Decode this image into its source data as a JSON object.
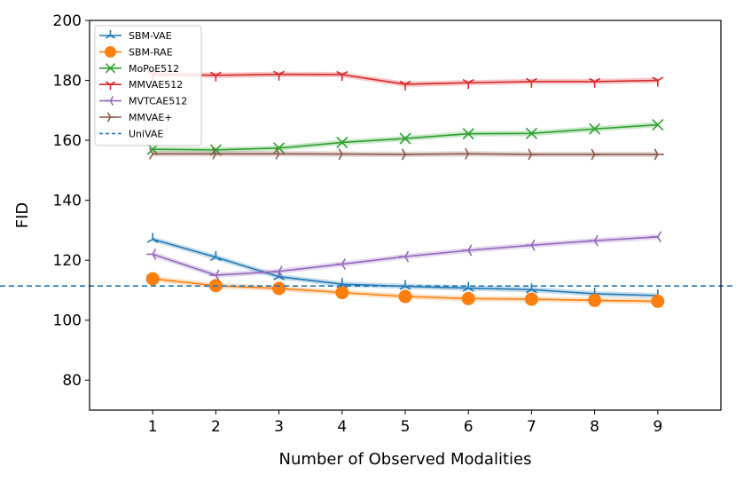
{
  "chart_data": {
    "type": "line",
    "xlabel": "Number of Observed Modalities",
    "ylabel": "FID",
    "x": [
      1,
      2,
      3,
      4,
      5,
      6,
      7,
      8,
      9
    ],
    "xticks": [
      "1",
      "2",
      "3",
      "4",
      "5",
      "6",
      "7",
      "8",
      "9"
    ],
    "yticks": [
      "80",
      "100",
      "120",
      "140",
      "160",
      "180",
      "200"
    ],
    "xlim": [
      0,
      10
    ],
    "ylim": [
      70,
      200
    ],
    "grid": false,
    "legend_position": "top-left",
    "series": [
      {
        "name": "SBM-VAE",
        "color": "#1f77b4",
        "marker": "tri_up",
        "values": [
          127,
          121,
          114.5,
          112,
          111.3,
          110.7,
          110.2,
          108.8,
          108.2
        ]
      },
      {
        "name": "SBM-RAE",
        "color": "#ff7f0e",
        "marker": "circle",
        "values": [
          113.8,
          111.5,
          110.6,
          109.2,
          107.9,
          107.2,
          107,
          106.6,
          106.3
        ]
      },
      {
        "name": "MoPoE512",
        "color": "#2ca02c",
        "marker": "x",
        "values": [
          157,
          156.8,
          157.4,
          159.3,
          160.6,
          162.2,
          162.3,
          163.8,
          165.2
        ]
      },
      {
        "name": "MMVAE512",
        "color": "#d62728",
        "marker": "tri_down",
        "values": [
          182,
          181.7,
          182,
          181.9,
          178.7,
          179.2,
          179.6,
          179.6,
          180
        ]
      },
      {
        "name": "MVTCAE512",
        "color": "#9467bd",
        "marker": "tri_left",
        "values": [
          122,
          115,
          116.3,
          118.7,
          121.2,
          123.3,
          125,
          126.5,
          127.8
        ]
      },
      {
        "name": "MMVAE+",
        "color": "#8c564b",
        "marker": "tri_right",
        "values": [
          155.5,
          155.5,
          155.5,
          155.4,
          155.3,
          155.5,
          155.3,
          155.3,
          155.3
        ]
      },
      {
        "name": "UniVAE",
        "color": "#1f77b4",
        "style": "dashed",
        "constant": 111.4
      }
    ]
  }
}
